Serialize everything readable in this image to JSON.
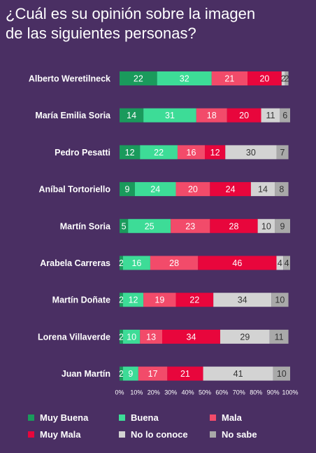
{
  "title_lines": [
    "¿Cuál es su opinión sobre la imagen",
    "de las siguientes personas?"
  ],
  "chart_data": {
    "type": "bar",
    "orientation": "horizontal",
    "stacked": true,
    "percent_stacked": true,
    "categories": [
      "Alberto Weretilneck",
      "María Emilia Soria",
      "Pedro Pesatti",
      "Aníbal Tortoriello",
      "Martín Soria",
      "Arabela Carreras",
      "Martín Doñate",
      "Lorena Villaverde",
      "Juan Martín"
    ],
    "series": [
      {
        "name": "Muy Buena",
        "color": "#1a9a5c",
        "values": [
          22,
          14,
          12,
          9,
          5,
          2,
          2,
          2,
          2
        ]
      },
      {
        "name": "Buena",
        "color": "#3ddc97",
        "values": [
          32,
          31,
          22,
          24,
          25,
          16,
          12,
          10,
          9
        ]
      },
      {
        "name": "Mala",
        "color": "#f24b6a",
        "values": [
          21,
          18,
          16,
          20,
          23,
          28,
          19,
          13,
          17
        ]
      },
      {
        "name": "Muy Mala",
        "color": "#e8063c",
        "values": [
          20,
          20,
          12,
          24,
          28,
          46,
          22,
          34,
          21
        ]
      },
      {
        "name": "No lo conoce",
        "color": "#d3d3d3",
        "values": [
          2,
          11,
          30,
          14,
          10,
          4,
          34,
          29,
          41
        ]
      },
      {
        "name": "No sabe",
        "color": "#a9a9a9",
        "values": [
          2,
          6,
          7,
          8,
          9,
          4,
          10,
          11,
          10
        ]
      }
    ],
    "xlim": [
      0,
      100
    ],
    "xticks": [
      "0%",
      "10%",
      "20%",
      "30%",
      "40%",
      "50%",
      "60%",
      "70%",
      "80%",
      "90%",
      "100%"
    ],
    "legend_position": "bottom",
    "grid": false
  }
}
